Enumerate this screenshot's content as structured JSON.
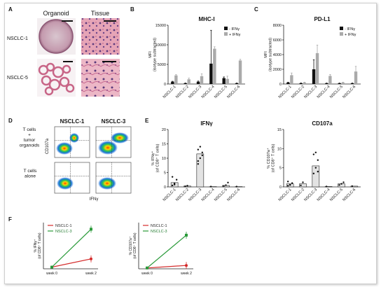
{
  "panels": {
    "A": {
      "letter": "A",
      "col_headers": [
        "Organoid",
        "Tissue"
      ],
      "row_labels": [
        "NSCLC-1",
        "NSCLC-5"
      ]
    },
    "B": {
      "letter": "B",
      "chart_data": {
        "type": "bar",
        "title": "MHC-I",
        "ylabel": "MFI\n(isotype subtracted)",
        "yticks": [
          0,
          5000,
          10000,
          15000
        ],
        "ylim": [
          0,
          15000
        ],
        "categories": [
          "NSCLC-1",
          "NSCLC-2",
          "NSCLC-3",
          "NSCLC-4",
          "NSCLC-5",
          "NSCLC-6"
        ],
        "legend": "top-right",
        "series": [
          {
            "name": "- IFNγ",
            "color": "#111111",
            "values": [
              600,
              200,
              600,
              5200,
              1500,
              200
            ],
            "errors": [
              100,
              50,
              150,
              8500,
              300,
              50
            ]
          },
          {
            "name": "+ IFNγ",
            "color": "#aaaaaa",
            "values": [
              2200,
              1200,
              2000,
              9000,
              1300,
              6000
            ],
            "errors": [
              200,
              300,
              600,
              500,
              700,
              300
            ]
          }
        ]
      }
    },
    "C": {
      "letter": "C",
      "chart_data": {
        "type": "bar",
        "title": "PD-L1",
        "ylabel": "MFI\n(isotype subtracted)",
        "yticks": [
          0,
          2000,
          4000,
          6000,
          8000
        ],
        "ylim": [
          0,
          8000
        ],
        "categories": [
          "NSCLC-1",
          "NSCLC-2",
          "NSCLC-3",
          "NSCLC-4",
          "NSCLC-5",
          "NSCLC-6"
        ],
        "legend": "top-right",
        "series": [
          {
            "name": "- IFNγ",
            "color": "#111111",
            "values": [
              200,
              100,
              2000,
              100,
              100,
              100
            ],
            "errors": [
              50,
              50,
              1300,
              30,
              30,
              30
            ]
          },
          {
            "name": "+ IFNγ",
            "color": "#aaaaaa",
            "values": [
              1200,
              200,
              4200,
              1100,
              200,
              1700
            ],
            "errors": [
              300,
              50,
              1100,
              200,
              50,
              700
            ]
          }
        ]
      }
    },
    "D": {
      "letter": "D",
      "col_headers": [
        "NSCLC-1",
        "NSCLC-3"
      ],
      "row_labels": [
        "T cells\n+\ntumor\norganoids",
        "T cells\nalone"
      ],
      "ylabel": "CD107a",
      "xlabel": "IFNγ"
    },
    "E": {
      "letter": "E",
      "chart_data": [
        {
          "type": "bar",
          "title": "IFNγ",
          "ylabel": "% IFNγ⁺\n(of CD8⁺ T cells)",
          "yticks": [
            0,
            5,
            10,
            15,
            20
          ],
          "ylim": [
            0,
            20
          ],
          "categories": [
            "NSCLC-1",
            "NSCLC-2",
            "NSCLC-3",
            "NSCLC-4",
            "NSCLC-5",
            "NSCLC-6"
          ],
          "values": [
            1.5,
            0.3,
            11.5,
            0.1,
            0.5,
            0.1
          ]
        },
        {
          "type": "bar",
          "title": "CD107a",
          "ylabel": "% CD107a⁺\n(of CD8⁺ T cells)",
          "yticks": [
            0,
            5,
            10,
            15
          ],
          "ylim": [
            0,
            15
          ],
          "categories": [
            "NSCLC-1",
            "NSCLC-2",
            "NSCLC-3",
            "NSCLC-4",
            "NSCLC-5",
            "NSCLC-6"
          ],
          "values": [
            0.8,
            0.8,
            5.5,
            0.1,
            0.8,
            0.2
          ]
        }
      ]
    },
    "F": {
      "letter": "F",
      "chart_data": [
        {
          "type": "line",
          "ylabel": "% IFNγ⁺\n(of CD8⁺ T cells)",
          "categories": [
            "week 0",
            "week 2"
          ],
          "series": [
            {
              "name": "NSCLC-1",
              "color": "#d42b2b",
              "values": [
                0.5,
                3.0
              ]
            },
            {
              "name": "NSCLC-3",
              "color": "#2a9a3a",
              "values": [
                0.5,
                12.0
              ]
            }
          ],
          "ylim": [
            0,
            14
          ]
        },
        {
          "type": "line",
          "ylabel": "% CD107a⁺\n(of CD8⁺ T cells)",
          "categories": [
            "week 0",
            "week 2"
          ],
          "series": [
            {
              "name": "NSCLC-1",
              "color": "#d42b2b",
              "values": [
                0.2,
                0.8
              ]
            },
            {
              "name": "NSCLC-3",
              "color": "#2a9a3a",
              "values": [
                0.2,
                8.0
              ]
            }
          ],
          "ylim": [
            0,
            11
          ]
        }
      ]
    }
  }
}
